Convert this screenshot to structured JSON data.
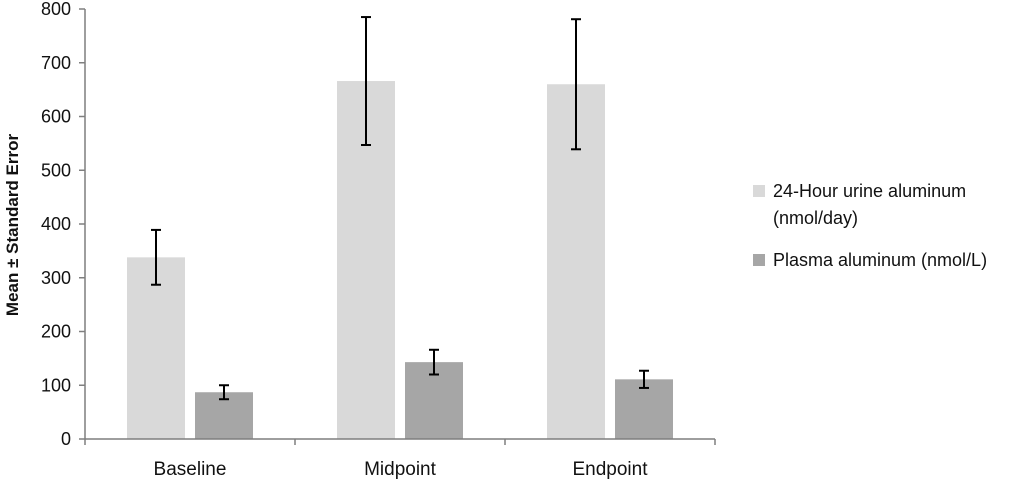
{
  "chart_data": {
    "type": "bar",
    "categories": [
      "Baseline",
      "Midpoint",
      "Endpoint"
    ],
    "series": [
      {
        "name": "24-Hour urine aluminum (nmol/day)",
        "color": "#d9d9d9",
        "values": [
          338,
          666,
          660
        ],
        "errors": [
          51,
          119,
          121
        ]
      },
      {
        "name": "Plasma aluminum (nmol/L)",
        "color": "#a6a6a6",
        "values": [
          87,
          143,
          111
        ],
        "errors": [
          13,
          23,
          16
        ]
      }
    ],
    "title": "",
    "xlabel": "",
    "ylabel": "Mean ± Standard Error",
    "ylim": [
      0,
      800
    ],
    "yticks": [
      0,
      100,
      200,
      300,
      400,
      500,
      600,
      700,
      800
    ],
    "grid": false,
    "legend_position": "right"
  }
}
